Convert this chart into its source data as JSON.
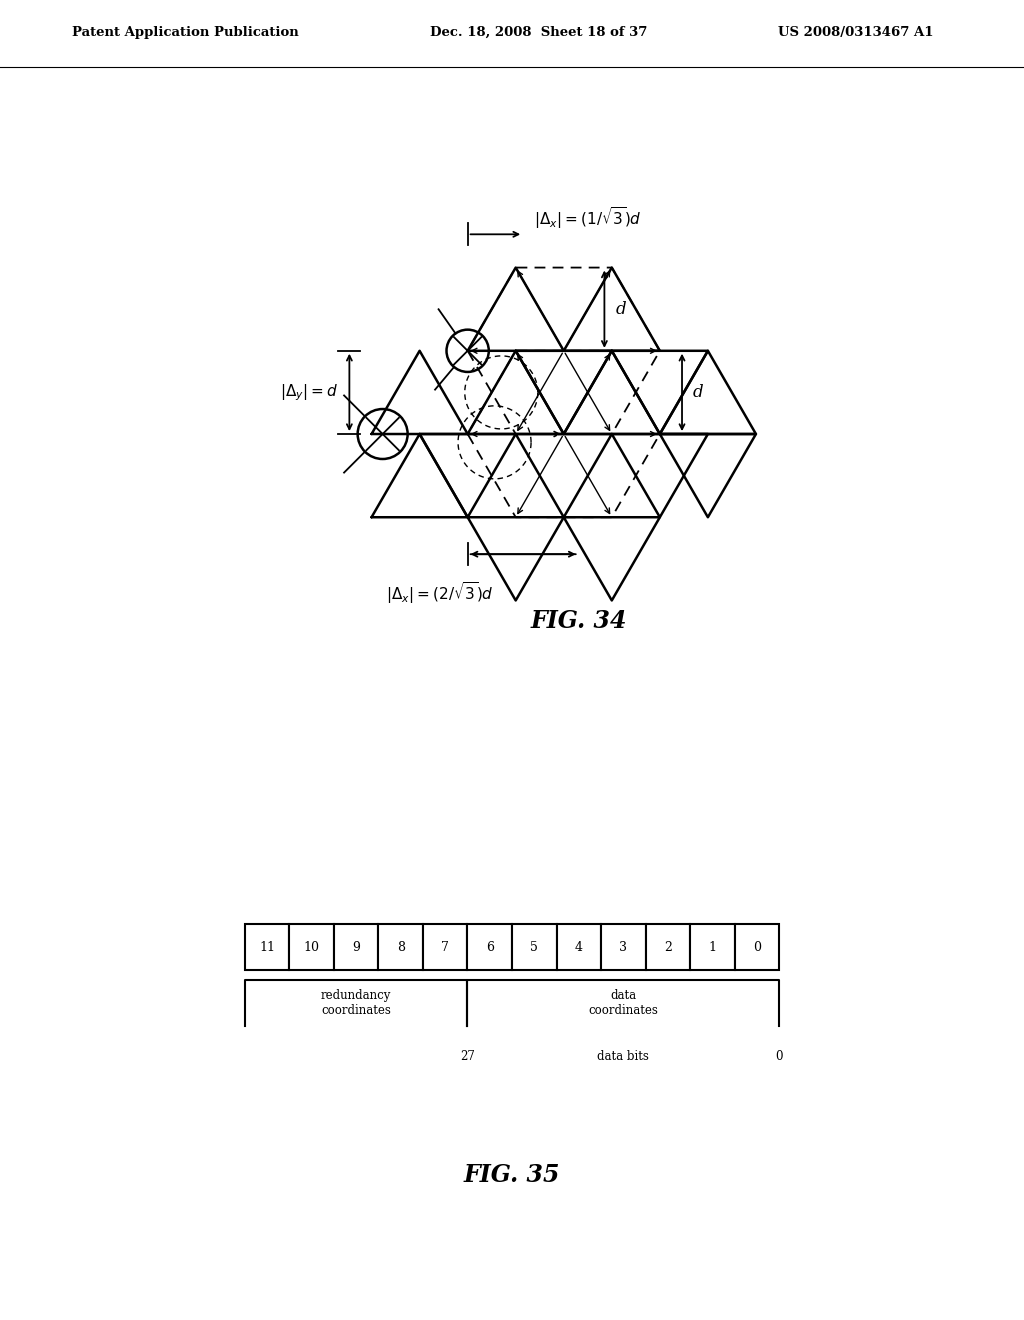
{
  "header_left": "Patent Application Publication",
  "header_mid": "Dec. 18, 2008  Sheet 18 of 37",
  "header_right": "US 2008/0313467 A1",
  "fig34_label": "FIG. 34",
  "fig35_label": "FIG. 35",
  "bit_labels": [
    "11",
    "10",
    "9",
    "8",
    "7",
    "6",
    "5",
    "4",
    "3",
    "2",
    "1",
    "0"
  ],
  "redundancy_label": "redundancy\ncoordinates",
  "data_coord_label": "data\ncoordinates",
  "data_bits_label": "data bits",
  "val_27": "27",
  "val_0": "0",
  "bg_color": "#ffffff",
  "line_color": "#000000"
}
